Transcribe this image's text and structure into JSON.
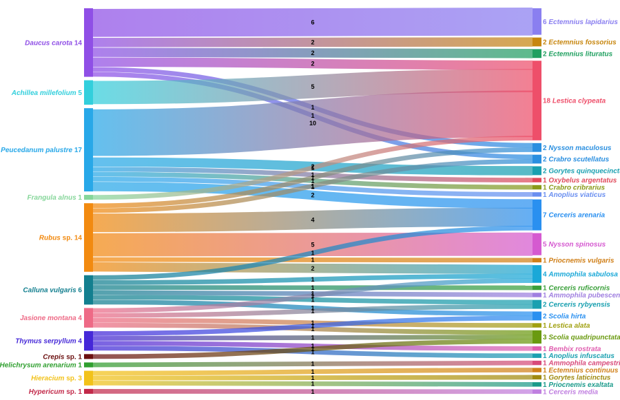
{
  "chart_data": {
    "type": "sankey",
    "title": "",
    "left_nodes": [
      {
        "name": "Daucus carota",
        "value": 14,
        "color": "#8f4fe6"
      },
      {
        "name": "Achillea millefolium",
        "value": 5,
        "color": "#32cfdc"
      },
      {
        "name": "Peucedanum palustre",
        "value": 17,
        "color": "#28a8e8"
      },
      {
        "name": "Frangula alnus",
        "value": 1,
        "color": "#86d69a"
      },
      {
        "name": "Rubus sp.",
        "value": 14,
        "color": "#f28a10"
      },
      {
        "name": "Calluna vulgaris",
        "value": 6,
        "color": "#137f8f"
      },
      {
        "name": "Jasione montana",
        "value": 4,
        "color": "#ee6a86"
      },
      {
        "name": "Thymus serpyllum",
        "value": 4,
        "color": "#4528d8"
      },
      {
        "name": "Crepis sp.",
        "value": 1,
        "color": "#6b0f0f"
      },
      {
        "name": "Helichrysum arenarium",
        "value": 1,
        "color": "#2f9f2f"
      },
      {
        "name": "Hieracium sp.",
        "value": 3,
        "color": "#f2c21a"
      },
      {
        "name": "Hypericum sp.",
        "value": 1,
        "color": "#c22a4a"
      }
    ],
    "right_nodes": [
      {
        "name": "Ectemnius lapidarius",
        "value": 6,
        "color": "#8a7ff0"
      },
      {
        "name": "Ectemnius fossorius",
        "value": 2,
        "color": "#c7860e"
      },
      {
        "name": "Ectemnius lituratus",
        "value": 2,
        "color": "#20a060"
      },
      {
        "name": "Lestica clypeata",
        "value": 18,
        "color": "#ee4f6a"
      },
      {
        "name": "Nysson maculosus",
        "value": 2,
        "color": "#2a8fe0"
      },
      {
        "name": "Crabro scutellatus",
        "value": 2,
        "color": "#2a8fe0"
      },
      {
        "name": "Gorytes quinquecinctus",
        "value": 2,
        "color": "#1aa0b0"
      },
      {
        "name": "Oxybelus argentatus",
        "value": 1,
        "color": "#e04a5a"
      },
      {
        "name": "Crabro cribrarius",
        "value": 1,
        "color": "#8a9a1a"
      },
      {
        "name": "Anoplius viaticus",
        "value": 1,
        "color": "#6a8ff0"
      },
      {
        "name": "Cerceris arenaria",
        "value": 7,
        "color": "#2a90f0"
      },
      {
        "name": "Nysson spinosus",
        "value": 5,
        "color": "#d55ad0"
      },
      {
        "name": "Priocnemis vulgaris",
        "value": 1,
        "color": "#d0801a"
      },
      {
        "name": "Ammophila sabulosa",
        "value": 4,
        "color": "#1aa8d8"
      },
      {
        "name": "Cerceris ruficornis",
        "value": 1,
        "color": "#3aa03a"
      },
      {
        "name": "Ammophila pubescens",
        "value": 1,
        "color": "#a080e0"
      },
      {
        "name": "Cerceris rybyensis",
        "value": 2,
        "color": "#1aa0b0"
      },
      {
        "name": "Scolia hirta",
        "value": 2,
        "color": "#2a90f0"
      },
      {
        "name": "Lestica alata",
        "value": 1,
        "color": "#a0a010"
      },
      {
        "name": "Scolia quadripunctata",
        "value": 3,
        "color": "#6a9a10"
      },
      {
        "name": "Bembix rostrata",
        "value": 1,
        "color": "#e060b0"
      },
      {
        "name": "Anoplius infuscatus",
        "value": 1,
        "color": "#1aa0b0"
      },
      {
        "name": "Ammophila campestris",
        "value": 1,
        "color": "#d84a7a"
      },
      {
        "name": "Ectemnius continuus",
        "value": 1,
        "color": "#d0801a"
      },
      {
        "name": "Gorytes laticinctus",
        "value": 1,
        "color": "#a08a10"
      },
      {
        "name": "Priocnemis exaltata",
        "value": 1,
        "color": "#1a9a8a"
      },
      {
        "name": "Cerceris media",
        "value": 1,
        "color": "#c080e0"
      }
    ],
    "links": [
      {
        "source": "Daucus carota",
        "target": "Ectemnius lapidarius",
        "value": 6
      },
      {
        "source": "Daucus carota",
        "target": "Ectemnius fossorius",
        "value": 2
      },
      {
        "source": "Daucus carota",
        "target": "Ectemnius lituratus",
        "value": 2
      },
      {
        "source": "Daucus carota",
        "target": "Lestica clypeata",
        "value": 2
      },
      {
        "source": "Daucus carota",
        "target": "Nysson maculosus",
        "value": 1
      },
      {
        "source": "Daucus carota",
        "target": "Crabro scutellatus",
        "value": 1
      },
      {
        "source": "Achillea millefolium",
        "target": "Lestica clypeata",
        "value": 5
      },
      {
        "source": "Peucedanum palustre",
        "target": "Lestica clypeata",
        "value": 10
      },
      {
        "source": "Peucedanum palustre",
        "target": "Gorytes quinquecinctus",
        "value": 2
      },
      {
        "source": "Peucedanum palustre",
        "target": "Oxybelus argentatus",
        "value": 1
      },
      {
        "source": "Peucedanum palustre",
        "target": "Crabro cribrarius",
        "value": 1
      },
      {
        "source": "Peucedanum palustre",
        "target": "Anoplius viaticus",
        "value": 1
      },
      {
        "source": "Peucedanum palustre",
        "target": "Cerceris arenaria",
        "value": 2
      },
      {
        "source": "Frangula alnus",
        "target": "Lestica clypeata",
        "value": 1
      },
      {
        "source": "Rubus sp.",
        "target": "Nysson maculosus",
        "value": 1
      },
      {
        "source": "Rubus sp.",
        "target": "Crabro scutellatus",
        "value": 1
      },
      {
        "source": "Rubus sp.",
        "target": "Cerceris arenaria",
        "value": 4
      },
      {
        "source": "Rubus sp.",
        "target": "Nysson spinosus",
        "value": 5
      },
      {
        "source": "Rubus sp.",
        "target": "Priocnemis vulgaris",
        "value": 1
      },
      {
        "source": "Rubus sp.",
        "target": "Ammophila sabulosa",
        "value": 2
      },
      {
        "source": "Calluna vulgaris",
        "target": "Cerceris arenaria",
        "value": 1
      },
      {
        "source": "Calluna vulgaris",
        "target": "Ammophila sabulosa",
        "value": 1
      },
      {
        "source": "Calluna vulgaris",
        "target": "Cerceris ruficornis",
        "value": 1
      },
      {
        "source": "Calluna vulgaris",
        "target": "Ammophila pubescens",
        "value": 1
      },
      {
        "source": "Calluna vulgaris",
        "target": "Cerceris rybyensis",
        "value": 1
      },
      {
        "source": "Calluna vulgaris",
        "target": "Scolia hirta",
        "value": 1
      },
      {
        "source": "Jasione montana",
        "target": "Ammophila sabulosa",
        "value": 1
      },
      {
        "source": "Jasione montana",
        "target": "Cerceris rybyensis",
        "value": 1
      },
      {
        "source": "Jasione montana",
        "target": "Lestica alata",
        "value": 1
      },
      {
        "source": "Jasione montana",
        "target": "Scolia quadripunctata",
        "value": 1
      },
      {
        "source": "Thymus serpyllum",
        "target": "Scolia hirta",
        "value": 1
      },
      {
        "source": "Thymus serpyllum",
        "target": "Scolia quadripunctata",
        "value": 1
      },
      {
        "source": "Thymus serpyllum",
        "target": "Bembix rostrata",
        "value": 1
      },
      {
        "source": "Thymus serpyllum",
        "target": "Anoplius infuscatus",
        "value": 1
      },
      {
        "source": "Crepis sp.",
        "target": "Scolia quadripunctata",
        "value": 1
      },
      {
        "source": "Helichrysum arenarium",
        "target": "Ammophila campestris",
        "value": 1
      },
      {
        "source": "Hieracium sp.",
        "target": "Ectemnius continuus",
        "value": 1
      },
      {
        "source": "Hieracium sp.",
        "target": "Gorytes laticinctus",
        "value": 1
      },
      {
        "source": "Hieracium sp.",
        "target": "Priocnemis exaltata",
        "value": 1
      },
      {
        "source": "Hypericum sp.",
        "target": "Cerceris media",
        "value": 1
      }
    ]
  }
}
